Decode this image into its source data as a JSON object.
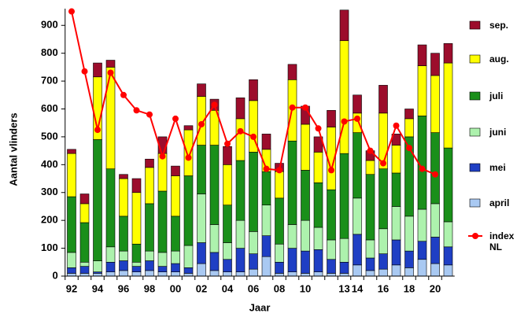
{
  "chart_data": {
    "type": "stacked-bar",
    "x_label": "Jaar",
    "y_label": "Aantal vlinders",
    "categories": [
      "92",
      null,
      "94",
      null,
      "96",
      null,
      "98",
      null,
      "00",
      null,
      "02",
      null,
      "04",
      null,
      "06",
      null,
      "08",
      null,
      "10",
      null,
      null,
      "13",
      "14",
      null,
      "16",
      null,
      "18",
      null,
      "20",
      null
    ],
    "series": [
      {
        "name": "april",
        "color": "#a9c9f2",
        "values": [
          10,
          10,
          10,
          15,
          20,
          15,
          20,
          15,
          15,
          10,
          45,
          20,
          15,
          15,
          25,
          70,
          10,
          15,
          10,
          15,
          10,
          10,
          40,
          20,
          25,
          40,
          30,
          60,
          45,
          40
        ]
      },
      {
        "name": "mei",
        "color": "#1f3fc4",
        "values": [
          20,
          25,
          5,
          35,
          35,
          20,
          35,
          20,
          30,
          20,
          75,
          65,
          45,
          85,
          55,
          75,
          40,
          85,
          80,
          80,
          50,
          40,
          110,
          45,
          55,
          90,
          60,
          65,
          95,
          65
        ]
      },
      {
        "name": "juni",
        "color": "#adf2ad",
        "values": [
          55,
          15,
          40,
          55,
          35,
          15,
          35,
          50,
          45,
          80,
          175,
          100,
          60,
          100,
          80,
          110,
          65,
          85,
          110,
          80,
          70,
          85,
          130,
          65,
          90,
          120,
          125,
          115,
          120,
          90
        ]
      },
      {
        "name": "juli",
        "color": "#1a8f1a",
        "values": [
          200,
          142,
          435,
          280,
          125,
          65,
          170,
          220,
          125,
          250,
          175,
          285,
          135,
          215,
          285,
          120,
          165,
          300,
          180,
          160,
          180,
          305,
          235,
          235,
          215,
          120,
          285,
          335,
          255,
          265
        ]
      },
      {
        "name": "aug.",
        "color": "#ffff00",
        "values": [
          155,
          68,
          225,
          365,
          135,
          185,
          130,
          135,
          145,
          165,
          175,
          125,
          145,
          150,
          185,
          80,
          95,
          220,
          165,
          110,
          225,
          405,
          70,
          50,
          200,
          100,
          65,
          180,
          205,
          305
        ]
      },
      {
        "name": "sep.",
        "color": "#9c0d2c",
        "values": [
          15,
          35,
          50,
          25,
          15,
          50,
          30,
          60,
          35,
          15,
          45,
          40,
          65,
          75,
          75,
          55,
          30,
          55,
          65,
          55,
          60,
          110,
          65,
          35,
          100,
          40,
          35,
          75,
          80,
          70
        ]
      }
    ],
    "lines": [
      {
        "name": "index NL",
        "color": "#ff0000",
        "values": [
          950,
          735,
          525,
          730,
          650,
          595,
          580,
          430,
          565,
          425,
          545,
          615,
          475,
          520,
          500,
          385,
          380,
          605,
          605,
          530,
          380,
          555,
          565,
          450,
          405,
          540,
          460,
          385,
          365,
          null
        ]
      }
    ],
    "ylim": [
      0,
      960
    ],
    "yticks": [
      0,
      100,
      200,
      300,
      400,
      500,
      600,
      700,
      800,
      900
    ]
  }
}
